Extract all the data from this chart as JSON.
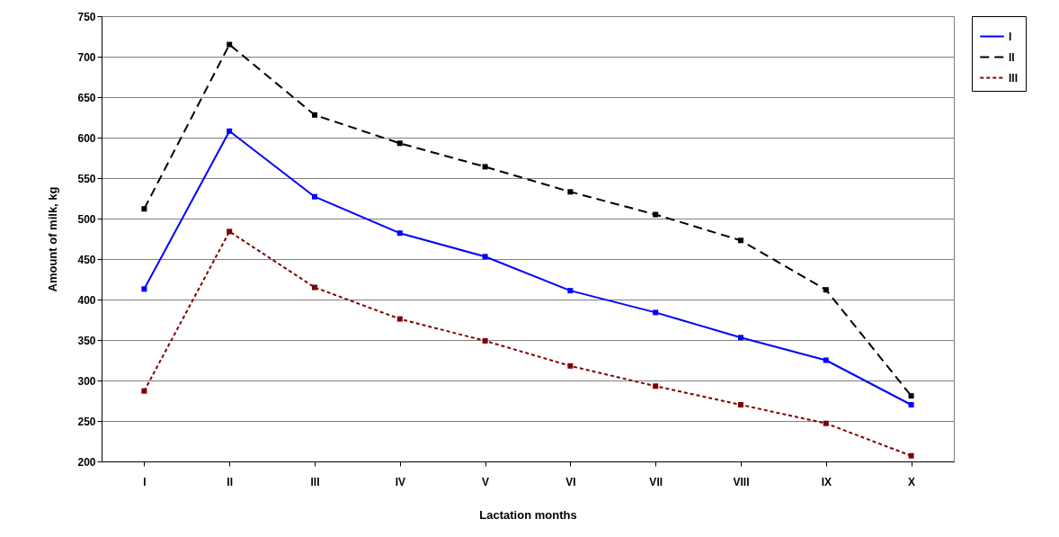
{
  "chart_data": {
    "type": "line",
    "xlabel": "Lactation months",
    "ylabel": "Amount of milk, kg",
    "categories": [
      "I",
      "II",
      "III",
      "IV",
      "V",
      "VI",
      "VII",
      "VIII",
      "IX",
      "X"
    ],
    "series": [
      {
        "name": "I",
        "color": "#0000ff",
        "line_style": "solid",
        "values": [
          413,
          608,
          527,
          482,
          453,
          411,
          384,
          353,
          325,
          270
        ]
      },
      {
        "name": "II",
        "color": "#000000",
        "line_style": "dashed",
        "values": [
          512,
          715,
          628,
          593,
          564,
          533,
          505,
          473,
          412,
          281
        ]
      },
      {
        "name": "III",
        "color": "#800000",
        "line_style": "dotted",
        "values": [
          287,
          484,
          415,
          376,
          349,
          318,
          293,
          270,
          247,
          207
        ]
      }
    ],
    "ylim": [
      200,
      750
    ],
    "yticks": [
      200,
      250,
      300,
      350,
      400,
      450,
      500,
      550,
      600,
      650,
      700,
      750
    ],
    "grid": "y",
    "legend": "right",
    "marker": "square"
  }
}
